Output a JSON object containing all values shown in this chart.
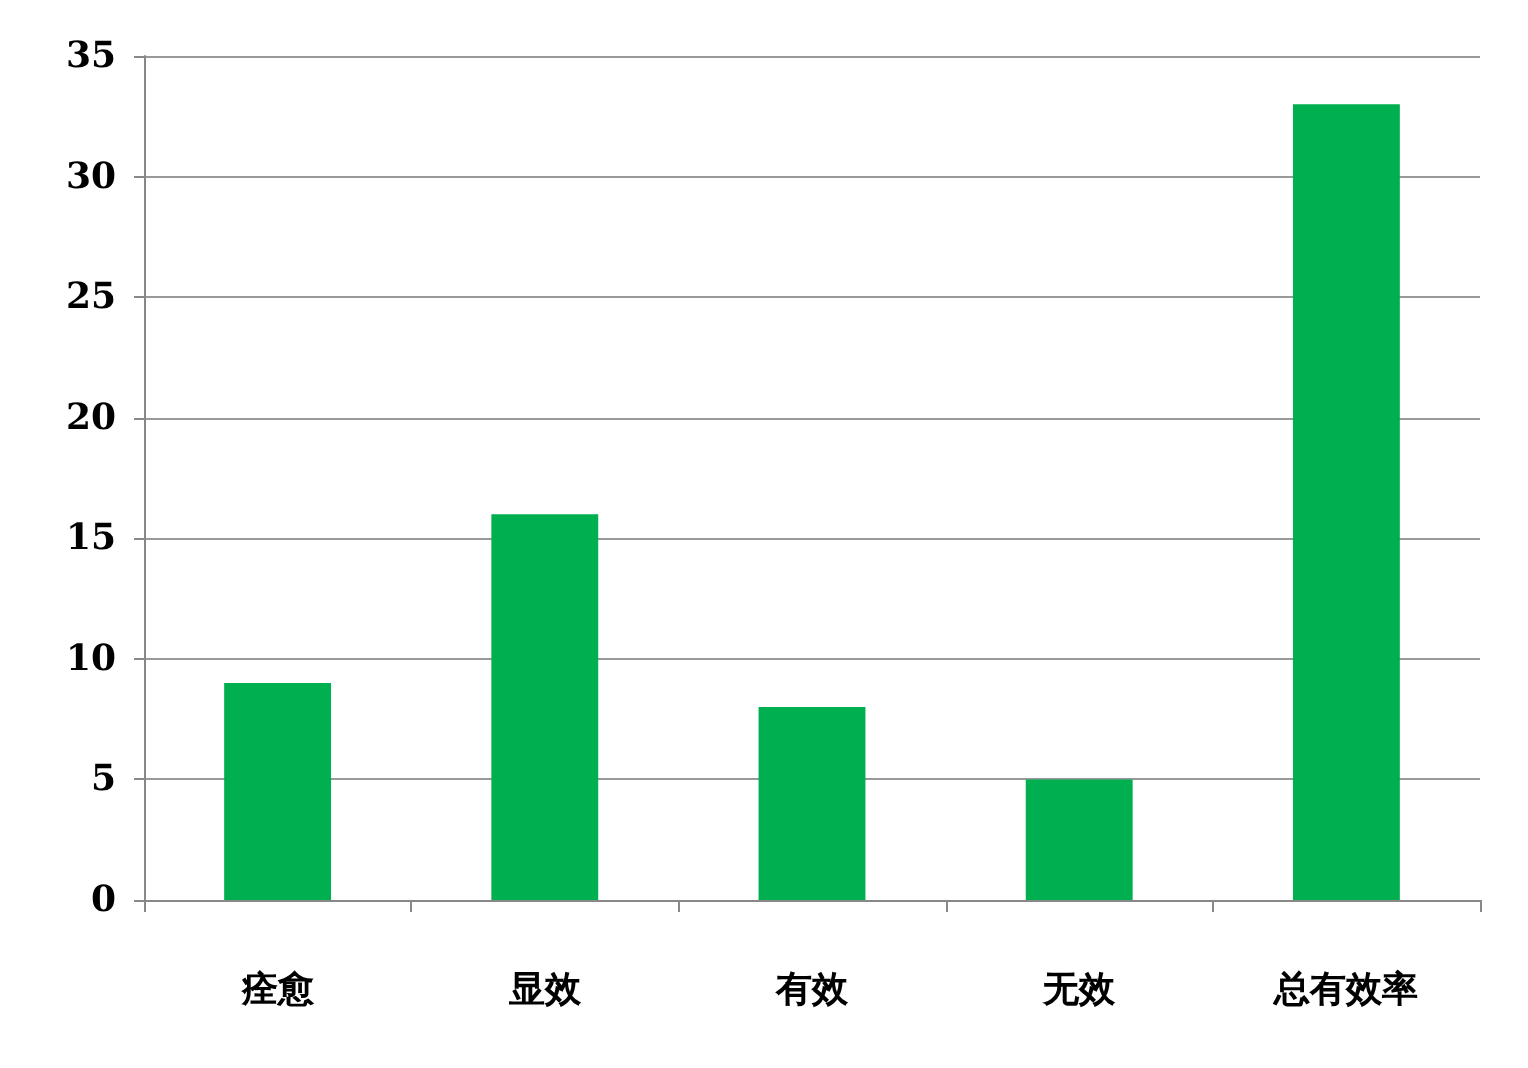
{
  "chart_data": {
    "type": "bar",
    "categories": [
      "痊愈",
      "显效",
      "有效",
      "无效",
      "总有效率"
    ],
    "values": [
      9,
      16,
      8,
      5,
      33
    ],
    "color": "#00b050",
    "ylim": [
      0,
      35
    ],
    "yticks": [
      0,
      5,
      10,
      15,
      20,
      25,
      30,
      35
    ],
    "grid": "y"
  }
}
